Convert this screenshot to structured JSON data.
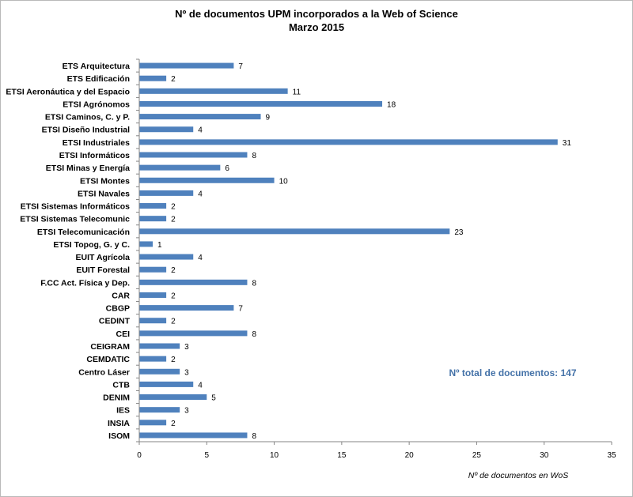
{
  "colors": {
    "bar": "#4f81bd",
    "axis": "#868686",
    "total": "#4472a8"
  },
  "chart_data": {
    "type": "bar",
    "orientation": "horizontal",
    "title": "Nº de documentos UPM incorporados a la Web of Science",
    "subtitle": "Marzo 2015",
    "xlabel": "Nº de documentos en WoS",
    "ylabel": "",
    "xlim": [
      0,
      35
    ],
    "xticks": [
      0,
      5,
      10,
      15,
      20,
      25,
      30,
      35
    ],
    "grid": false,
    "annotation": "Nº total de documentos: 147",
    "categories": [
      "ETS Arquitectura",
      "ETS Edificación",
      "ETSI Aeronáutica y del Espacio",
      "ETSI Agrónomos",
      "ETSI Caminos, C. y P.",
      "ETSI Diseño Industrial",
      "ETSI Industriales",
      "ETSI Informáticos",
      "ETSI Minas y Energía",
      "ETSI Montes",
      "ETSI Navales",
      "ETSI Sistemas Informáticos",
      "ETSI Sistemas Telecomunic",
      "ETSI Telecomunicación",
      "ETSI Topog, G. y C.",
      "EUIT Agrícola",
      "EUIT Forestal",
      "F.CC Act. Física y Dep.",
      "CAR",
      "CBGP",
      "CEDINT",
      "CEI",
      "CEIGRAM",
      "CEMDATIC",
      "Centro Láser",
      "CTB",
      "DENIM",
      "IES",
      "INSIA",
      "ISOM"
    ],
    "values": [
      7,
      2,
      11,
      18,
      9,
      4,
      31,
      8,
      6,
      10,
      4,
      2,
      2,
      23,
      1,
      4,
      2,
      8,
      2,
      7,
      2,
      8,
      3,
      2,
      3,
      4,
      5,
      3,
      2,
      8
    ]
  }
}
